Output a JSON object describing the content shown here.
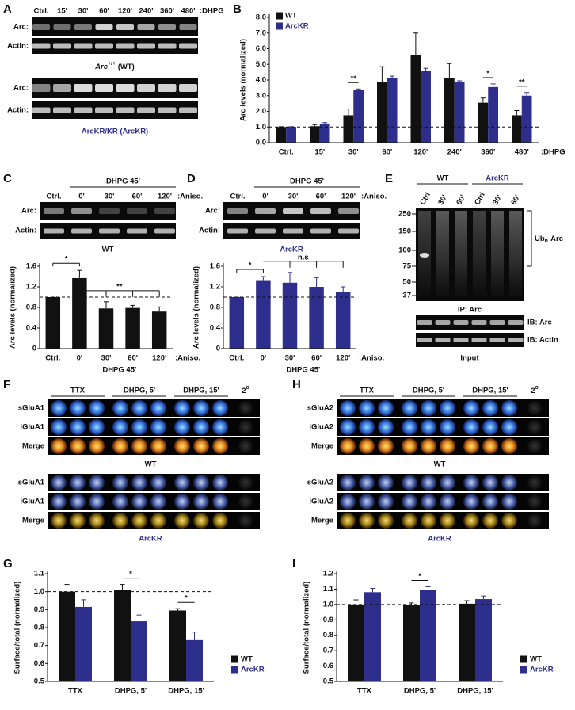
{
  "panel_labels": [
    "A",
    "B",
    "C",
    "D",
    "E",
    "F",
    "G",
    "H",
    "I"
  ],
  "blot_a": {
    "lanes": [
      "Ctrl.",
      "15'",
      "30'",
      "60'",
      "120'",
      "240'",
      "360'",
      "480'"
    ],
    "treatment": ":DHPG",
    "rows": [
      "Arc:",
      "Actin:"
    ],
    "caption_wt": {
      "gene": "Arc",
      "genotype": "+/+",
      "suffix": " (WT)"
    },
    "caption_kr": "ArcKR/KR (ArcKR)"
  },
  "blot_c": {
    "treatment": "DHPG 45'",
    "lanes": [
      "Ctrl.",
      "0'",
      "30'",
      "60'",
      "120'"
    ],
    "suffix": ":Aniso.",
    "rows": [
      "Arc:",
      "Actin:"
    ],
    "caption": "WT"
  },
  "blot_d": {
    "treatment": "DHPG 45'",
    "lanes": [
      "Ctrl.",
      "0'",
      "30'",
      "60'",
      "120'"
    ],
    "suffix": ":Aniso.",
    "rows": [
      "Arc:",
      "Actin:"
    ],
    "caption": "ArcKR"
  },
  "blot_e": {
    "groups": [
      "WT",
      "ArcKR"
    ],
    "lanes": [
      "Ctrl",
      "30'",
      "60'",
      "Ctrl",
      "30'",
      "60'"
    ],
    "markers": [
      250,
      150,
      100,
      75,
      50,
      37
    ],
    "bracket": {
      "main": "Ub",
      "sub": "n",
      "tail": "-Arc"
    },
    "ip": "IP: Arc",
    "ib": [
      "IB: Arc",
      "IB: Actin"
    ],
    "input": "Input"
  },
  "dots_f": {
    "headers": [
      "TTX",
      "DHPG, 5'",
      "DHPG, 15'"
    ],
    "secondary": {
      "main": "2",
      "sup": "o"
    },
    "rows": [
      "sGluA1",
      "iGluA1",
      "Merge"
    ],
    "captions": [
      "WT",
      "ArcKR"
    ]
  },
  "dots_h": {
    "headers": [
      "TTX",
      "DHPG, 5'",
      "DHPG, 15'"
    ],
    "secondary": {
      "main": "2",
      "sup": "o"
    },
    "rows": [
      "sGluA2",
      "iGluA2",
      "Merge"
    ],
    "captions": [
      "WT",
      "ArcKR"
    ]
  },
  "chart_data": [
    {
      "type": "bar",
      "ylabel": "Arc levels (normalized)",
      "categories": [
        "Ctrl.",
        "15'",
        "30'",
        "60'",
        "120'",
        "240'",
        "360'",
        "480'"
      ],
      "x_note": ":DHPG",
      "ylim": [
        0,
        8
      ],
      "yticks": [
        {
          "value": 0,
          "label": "0.0"
        },
        {
          "value": 1,
          "label": "1.0"
        },
        {
          "value": 2,
          "label": "2.0"
        },
        {
          "value": 3,
          "label": "3.0"
        },
        {
          "value": 4,
          "label": "4.0"
        },
        {
          "value": 5,
          "label": "5.0"
        },
        {
          "value": 6,
          "label": "6.0"
        },
        {
          "value": 7,
          "label": "7.0"
        },
        {
          "value": 8,
          "label": "8.0"
        }
      ],
      "refline": 1,
      "legend": "upper left",
      "series": [
        {
          "name": "WT",
          "color": "#111111",
          "values": [
            1.0,
            1.05,
            1.75,
            3.85,
            5.6,
            4.15,
            2.55,
            1.75
          ],
          "errors": [
            0.02,
            0.1,
            0.4,
            1.0,
            1.4,
            0.9,
            0.3,
            0.3
          ]
        },
        {
          "name": "ArcKR",
          "color": "#2e2e8c",
          "values": [
            1.0,
            1.2,
            3.35,
            4.15,
            4.6,
            3.85,
            3.55,
            3.0
          ],
          "errors": [
            0.02,
            0.08,
            0.08,
            0.1,
            0.15,
            0.1,
            0.2,
            0.2
          ]
        }
      ],
      "annotations": [
        {
          "label": "**",
          "category": "30'"
        },
        {
          "label": "*",
          "category": "360'"
        },
        {
          "label": "**",
          "category": "480'"
        }
      ]
    },
    {
      "type": "bar",
      "ylabel": "Arc levels (normalized)",
      "categories": [
        "Ctrl.",
        "0'",
        "30'",
        "60'",
        "120'"
      ],
      "x_note": ":Aniso.",
      "x_group": "DHPG 45'",
      "ylim": [
        0,
        1.6
      ],
      "yticks": [
        0,
        0.4,
        0.8,
        1.2,
        1.6
      ],
      "refline": 1,
      "color": "#111111",
      "values": [
        1.0,
        1.37,
        0.78,
        0.79,
        0.72
      ],
      "errors": [
        0,
        0.15,
        0.13,
        0.05,
        0.09
      ],
      "annotations": [
        {
          "label": "*",
          "from": "Ctrl.",
          "to": [
            "0'"
          ]
        },
        {
          "label": "**",
          "from": "0'",
          "to": [
            "30'",
            "60'",
            "120'"
          ]
        }
      ]
    },
    {
      "type": "bar",
      "ylabel": "Arc levels (normalized)",
      "categories": [
        "Ctrl.",
        "0'",
        "30'",
        "60'",
        "120'"
      ],
      "x_note": ":Aniso.",
      "x_group": "DHPG 45'",
      "ylim": [
        0,
        1.6
      ],
      "yticks": [
        0,
        0.4,
        0.8,
        1.2,
        1.6
      ],
      "refline": 1,
      "color": "#2e2e8c",
      "values": [
        1.0,
        1.33,
        1.28,
        1.2,
        1.1
      ],
      "errors": [
        0,
        0.07,
        0.2,
        0.18,
        0.1
      ],
      "annotations": [
        {
          "label": "*",
          "from": "Ctrl.",
          "to": [
            "0'"
          ]
        },
        {
          "label": "n.s",
          "from": "0'",
          "to": [
            "30'",
            "60'",
            "120'"
          ]
        }
      ]
    },
    {
      "type": "bar",
      "ylabel": "Surface/total (normalized)",
      "categories": [
        "TTX",
        "DHPG, 5'",
        "DHPG, 15'"
      ],
      "ylim": [
        0.5,
        1.1
      ],
      "yticks": [
        0.5,
        0.6,
        0.7,
        0.8,
        0.9,
        {
          "value": 1,
          "label": "1.0"
        },
        1.1
      ],
      "refline": 1,
      "legend": "lower right",
      "series": [
        {
          "name": "WT",
          "color": "#111111",
          "values": [
            1.0,
            1.01,
            0.895
          ],
          "errors": [
            0.04,
            0.03,
            0.01
          ]
        },
        {
          "name": "ArcKR",
          "color": "#2e2e8c",
          "values": [
            0.915,
            0.835,
            0.73
          ],
          "errors": [
            0.04,
            0.035,
            0.045
          ]
        }
      ],
      "annotations": [
        {
          "label": "*",
          "category": "DHPG, 5'"
        },
        {
          "label": "*",
          "category": "DHPG, 15'"
        }
      ]
    },
    {
      "type": "bar",
      "ylabel": "Surface/total (normalized)",
      "categories": [
        "TTX",
        "DHPG, 5'",
        "DHPG, 15'"
      ],
      "ylim": [
        0.5,
        1.2
      ],
      "yticks": [
        0.5,
        0.6,
        0.7,
        0.8,
        0.9,
        {
          "value": 1,
          "label": "1.0"
        },
        1.1,
        1.2
      ],
      "refline": 1,
      "legend": "lower right",
      "series": [
        {
          "name": "WT",
          "color": "#111111",
          "values": [
            1.0,
            0.995,
            1.005
          ],
          "errors": [
            0.03,
            0.015,
            0.02
          ]
        },
        {
          "name": "ArcKR",
          "color": "#2e2e8c",
          "values": [
            1.08,
            1.095,
            1.035
          ],
          "errors": [
            0.025,
            0.02,
            0.02
          ]
        }
      ],
      "annotations": [
        {
          "label": "*",
          "category": "DHPG, 5'"
        }
      ]
    }
  ]
}
